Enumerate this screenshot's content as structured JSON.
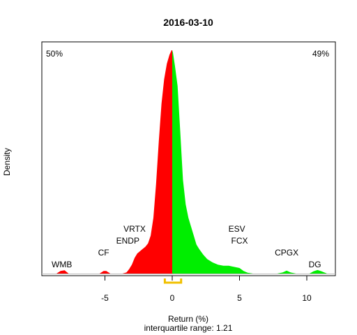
{
  "chart_data": {
    "type": "area",
    "title": "2016-03-10",
    "xlabel": "Return (%)",
    "ylabel": "Density",
    "subtitle": "interquartile range: 1.21",
    "xlim": [
      -10,
      12
    ],
    "ylim": [
      0,
      1
    ],
    "x_ticks": [
      -5,
      0,
      5,
      10
    ],
    "x_tick_labels": [
      "-5",
      "0",
      "5",
      "10"
    ],
    "negative_share_label": "50%",
    "positive_share_label": "49%",
    "colors": {
      "negative": "#ff0000",
      "positive": "#00ee00",
      "iqr": "#f0c000",
      "baseline": "#bebebe"
    },
    "interquartile_range": [
      -0.55,
      0.66
    ],
    "density": {
      "x": [
        -9.5,
        -8.6,
        -8.3,
        -8.0,
        -7.7,
        -5.4,
        -5.1,
        -4.9,
        -4.6,
        -3.7,
        -3.4,
        -3.2,
        -3.0,
        -2.8,
        -2.6,
        -2.4,
        -2.2,
        -2.0,
        -1.8,
        -1.6,
        -1.4,
        -1.2,
        -1.0,
        -0.8,
        -0.6,
        -0.4,
        -0.2,
        -0.05,
        0.0,
        0.05,
        0.2,
        0.4,
        0.6,
        0.8,
        1.0,
        1.2,
        1.4,
        1.6,
        1.8,
        2.0,
        2.3,
        2.6,
        3.0,
        3.4,
        3.8,
        4.2,
        4.6,
        5.0,
        5.3,
        5.6,
        6.0,
        7.8,
        8.2,
        8.5,
        8.8,
        9.2,
        10.2,
        10.5,
        10.8,
        11.1,
        11.5
      ],
      "y": [
        0,
        0,
        0.012,
        0.015,
        0,
        0,
        0.012,
        0.012,
        0,
        0,
        0.005,
        0.02,
        0.04,
        0.07,
        0.09,
        0.1,
        0.11,
        0.12,
        0.135,
        0.17,
        0.25,
        0.4,
        0.59,
        0.76,
        0.87,
        0.94,
        0.98,
        1.0,
        1.0,
        0.99,
        0.93,
        0.84,
        0.63,
        0.42,
        0.31,
        0.25,
        0.21,
        0.17,
        0.13,
        0.11,
        0.085,
        0.065,
        0.05,
        0.04,
        0.035,
        0.035,
        0.03,
        0.025,
        0.012,
        0.004,
        0,
        0,
        0.005,
        0.013,
        0.005,
        0,
        0,
        0.01,
        0.016,
        0.01,
        0
      ]
    },
    "annotations": [
      {
        "label": "WMB",
        "x": -8.2,
        "level": 1
      },
      {
        "label": "CF",
        "x": -5.1,
        "level": 2
      },
      {
        "label": "ENDP",
        "x": -3.3,
        "level": 3
      },
      {
        "label": "VRTX",
        "x": -2.8,
        "level": 4
      },
      {
        "label": "ESV",
        "x": 4.8,
        "level": 4
      },
      {
        "label": "FCX",
        "x": 5.0,
        "level": 3
      },
      {
        "label": "CPGX",
        "x": 8.5,
        "level": 2
      },
      {
        "label": "DG",
        "x": 10.6,
        "level": 1
      }
    ]
  }
}
